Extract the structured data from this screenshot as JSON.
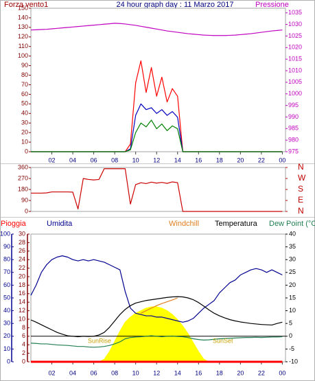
{
  "chart_data": [
    {
      "type": "line",
      "title": "24 hour graph day : 11 Marzo 2017",
      "ylabel": "Forza vento1",
      "y2label": "Pressione",
      "x": [
        0,
        0.5,
        1,
        1.5,
        2,
        2.5,
        3,
        3.5,
        4,
        4.5,
        5,
        5.5,
        6,
        6.5,
        7,
        7.5,
        8,
        8.5,
        9,
        9.5,
        10,
        10.5,
        11,
        11.5,
        12,
        12.5,
        13,
        13.5,
        14,
        14.5,
        15,
        15.5,
        16,
        16.5,
        17,
        17.5,
        18,
        18.5,
        19,
        19.5,
        20,
        20.5,
        21,
        21.5,
        22,
        22.5,
        23,
        23.5,
        24
      ],
      "xlim": [
        0,
        24.3
      ],
      "xticks": [
        {
          "value": 2,
          "label": "02"
        },
        {
          "value": 4,
          "label": "04"
        },
        {
          "value": 6,
          "label": "06"
        },
        {
          "value": 8,
          "label": "08"
        },
        10,
        12,
        14,
        16,
        18,
        20,
        22,
        {
          "value": 24,
          "label": "00"
        }
      ],
      "ylim": [
        0,
        150
      ],
      "yticks": [
        0,
        10,
        20,
        30,
        40,
        50,
        60,
        70,
        80,
        90,
        100,
        110,
        120,
        130,
        140,
        150
      ],
      "y2lim": [
        975,
        1037
      ],
      "y2ticks": [
        975,
        980,
        985,
        990,
        995,
        1000,
        1005,
        1010,
        1015,
        1020,
        1025,
        1030,
        1035
      ],
      "series": [
        {
          "color": "#ff0000",
          "values": [
            0,
            0,
            0,
            0,
            0,
            0,
            0,
            0,
            0,
            0,
            0,
            0,
            0,
            0,
            0,
            0,
            0,
            0,
            0,
            8,
            72,
            95,
            62,
            88,
            58,
            78,
            52,
            66,
            58,
            0,
            0,
            0,
            0,
            0,
            0,
            0,
            0,
            0,
            0,
            0,
            0,
            0,
            0,
            0,
            0,
            0,
            0,
            0,
            0
          ]
        },
        {
          "color": "#0000c0",
          "values": [
            0,
            0,
            0,
            0,
            0,
            0,
            0,
            0,
            0,
            0,
            0,
            0,
            0,
            0,
            0,
            0,
            0,
            0,
            0,
            3,
            38,
            50,
            44,
            46,
            40,
            44,
            38,
            42,
            36,
            0,
            0,
            0,
            0,
            0,
            0,
            0,
            0,
            0,
            0,
            0,
            0,
            0,
            0,
            0,
            0,
            0,
            0,
            0,
            0
          ]
        },
        {
          "color": "#008000",
          "values": [
            0,
            0,
            0,
            0,
            0,
            0,
            0,
            0,
            0,
            0,
            0,
            0,
            0,
            0,
            0,
            0,
            0,
            0,
            0,
            2,
            20,
            30,
            26,
            33,
            24,
            29,
            22,
            27,
            24,
            0,
            0,
            0,
            0,
            0,
            0,
            0,
            0,
            0,
            0,
            0,
            0,
            0,
            0,
            0,
            0,
            0,
            0,
            0,
            0
          ]
        },
        {
          "color": "#c000c0",
          "axis": "y2",
          "values": [
            1027.6,
            1027.7,
            1027.8,
            1027.9,
            1028.1,
            1028.3,
            1028.5,
            1028.7,
            1028.9,
            1029.1,
            1029.3,
            1029.5,
            1029.7,
            1029.9,
            1030.1,
            1030.3,
            1030.5,
            1030.4,
            1030.2,
            1029.9,
            1029.6,
            1029.2,
            1028.8,
            1028.4,
            1028.0,
            1027.6,
            1027.2,
            1026.9,
            1026.6,
            1026.3,
            1026.0,
            1025.8,
            1025.6,
            1025.4,
            1025.3,
            1025.2,
            1025.2,
            1025.2,
            1025.3,
            1025.4,
            1025.6,
            1025.8,
            1026.0,
            1026.3,
            1026.6,
            1026.9,
            1027.2,
            1027.4,
            1027.6
          ]
        }
      ]
    },
    {
      "type": "line",
      "x": [
        0,
        0.5,
        1,
        1.5,
        2,
        2.5,
        3,
        3.5,
        4,
        4.5,
        5,
        5.5,
        6,
        6.5,
        7,
        7.5,
        8,
        8.5,
        9,
        9.5,
        10,
        10.5,
        11,
        11.5,
        12,
        12.5,
        13,
        13.5,
        14,
        14.5,
        15,
        15.5,
        16,
        16.5,
        17,
        17.5,
        18,
        18.5,
        19,
        19.5,
        20,
        20.5,
        21,
        21.5,
        22,
        22.5,
        23,
        23.5,
        24
      ],
      "xlim": [
        0,
        24.3
      ],
      "ylim": [
        0,
        360
      ],
      "yticks": [
        0,
        90,
        180,
        270,
        360
      ],
      "y2lim": [
        0,
        360
      ],
      "y2ticks": [
        {
          "value": 0,
          "label": "N"
        },
        {
          "value": 90,
          "label": "E"
        },
        {
          "value": 180,
          "label": "S"
        },
        {
          "value": 270,
          "label": "W"
        },
        {
          "value": 360,
          "label": "N"
        }
      ],
      "series": [
        {
          "color": "#cc0000",
          "values": [
            150,
            150,
            150,
            152,
            160,
            160,
            160,
            160,
            158,
            20,
            270,
            262,
            258,
            262,
            350,
            350,
            350,
            350,
            350,
            60,
            220,
            235,
            228,
            240,
            232,
            238,
            230,
            242,
            236,
            0,
            0,
            0,
            0,
            0,
            0,
            0,
            0,
            0,
            0,
            0,
            0,
            0,
            0,
            0,
            0,
            0,
            0,
            0,
            0
          ]
        }
      ]
    },
    {
      "type": "line",
      "x": [
        0,
        0.5,
        1,
        1.5,
        2,
        2.5,
        3,
        3.5,
        4,
        4.5,
        5,
        5.5,
        6,
        6.5,
        7,
        7.5,
        8,
        8.5,
        9,
        9.5,
        10,
        10.5,
        11,
        11.5,
        12,
        12.5,
        13,
        13.5,
        14,
        14.5,
        15,
        15.5,
        16,
        16.5,
        17,
        17.5,
        18,
        18.5,
        19,
        19.5,
        20,
        20.5,
        21,
        21.5,
        22,
        22.5,
        23,
        23.5,
        24
      ],
      "xlim": [
        0,
        24.3
      ],
      "xticks": [
        {
          "value": 2,
          "label": "02"
        },
        {
          "value": 4,
          "label": "04"
        },
        {
          "value": 6,
          "label": "06"
        },
        {
          "value": 8,
          "label": "08"
        },
        10,
        12,
        14,
        16,
        18,
        20,
        22,
        {
          "value": 24,
          "label": "00"
        }
      ],
      "ylim": [
        0,
        100
      ],
      "yticks": [
        0,
        10,
        20,
        30,
        40,
        50,
        60,
        70,
        80,
        90,
        100
      ],
      "y2lim": [
        -10,
        40
      ],
      "y2ticks": [
        -10,
        -5,
        0,
        5,
        10,
        15,
        20,
        25,
        30,
        35,
        40
      ],
      "y3lim": [
        0,
        30
      ],
      "y3ticks": [
        0,
        2,
        4,
        6,
        8,
        10,
        12,
        14,
        16,
        18,
        20,
        22,
        24,
        26,
        28,
        30
      ],
      "annotations": [
        "SunRise",
        "SunSet"
      ],
      "series": [
        {
          "color": "#ffff00",
          "area": true,
          "values": [
            0,
            0,
            0,
            0,
            0,
            0,
            0,
            0,
            0,
            0,
            0,
            0,
            0,
            0,
            2,
            8,
            16,
            24,
            31,
            35,
            38,
            40,
            42,
            43,
            43,
            42,
            40,
            37,
            33,
            28,
            22,
            15,
            8,
            2,
            0,
            0,
            0,
            0,
            0,
            0,
            0,
            0,
            0,
            0,
            0,
            0,
            0,
            0,
            0
          ]
        },
        {
          "name": "Pioggia",
          "color": "#ff0000",
          "axis": "y3",
          "values": [
            0,
            0,
            0,
            0,
            0,
            0,
            0,
            0,
            0,
            0,
            0,
            0,
            0,
            0,
            0,
            0,
            0,
            0,
            0,
            0,
            0,
            0,
            0,
            0,
            0,
            0,
            0,
            0,
            0,
            0,
            0,
            0,
            0,
            0,
            0,
            0,
            0,
            0,
            0,
            0,
            0,
            0,
            0,
            0,
            0,
            0,
            0,
            0,
            0
          ]
        },
        {
          "name": "Umidita",
          "color": "#000090",
          "values": [
            52,
            60,
            70,
            76,
            80,
            82,
            83,
            82,
            80,
            79,
            80,
            79,
            80,
            79,
            78,
            76,
            74,
            72,
            55,
            42,
            38,
            37,
            36,
            36,
            35,
            35,
            34,
            33,
            32,
            31,
            32,
            34,
            38,
            42,
            45,
            48,
            54,
            58,
            62,
            64,
            68,
            70,
            72,
            73,
            72,
            70,
            72,
            70,
            68
          ]
        },
        {
          "name": "Windchill",
          "color": "#e08020",
          "axis": "y2",
          "values": [
            null,
            null,
            null,
            null,
            null,
            null,
            null,
            null,
            null,
            null,
            null,
            null,
            null,
            null,
            null,
            null,
            null,
            null,
            null,
            null,
            null,
            9,
            10,
            11,
            12,
            12.8,
            13.5,
            14.2,
            15,
            null,
            null,
            null,
            null,
            null,
            null,
            null,
            null,
            null,
            null,
            null,
            null,
            null,
            null,
            null,
            null,
            null,
            null,
            null,
            null
          ]
        },
        {
          "name": "Temperatura",
          "color": "#000000",
          "axis": "y2",
          "values": [
            6.4,
            5.5,
            4.5,
            3.5,
            2.5,
            1.5,
            0.8,
            0.2,
            0,
            -0.2,
            0,
            -0.1,
            0,
            0.5,
            1.5,
            3.5,
            6,
            8.5,
            10.5,
            12,
            13,
            13.5,
            14,
            14.3,
            14.6,
            14.9,
            15.2,
            15.4,
            15.5,
            15.4,
            15,
            14.3,
            13.2,
            11.8,
            10.3,
            9,
            8,
            7.2,
            6.5,
            6,
            5.6,
            5.3,
            5,
            4.8,
            4.6,
            4.5,
            4.4,
            5,
            5.5
          ]
        },
        {
          "name": "Dew Point (°C",
          "color": "#1f7f50",
          "axis": "y2",
          "values": [
            -2.7,
            -2.8,
            -3,
            -3,
            -3.2,
            -3.4,
            -3.5,
            -3.6,
            -3.8,
            -4,
            -4,
            -4.2,
            -4.3,
            -4.2,
            -4,
            -3.6,
            -3,
            -2.2,
            -1,
            -0.5,
            -0.3,
            -0.2,
            0,
            0.2,
            0,
            -0.2,
            0,
            0.1,
            -0.1,
            -0.2,
            -0.5,
            -1,
            -1.3,
            -1.5,
            -1.4,
            -1.2,
            -1,
            -0.9,
            -0.8,
            -0.7,
            -0.6,
            -0.5,
            -0.5,
            -0.4,
            -0.5,
            -0.4,
            -0.3,
            -0.3,
            -0.2
          ]
        }
      ]
    }
  ]
}
